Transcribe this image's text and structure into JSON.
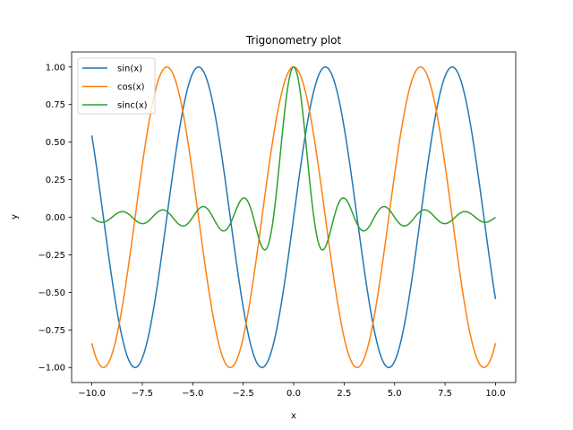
{
  "chart_data": {
    "type": "line",
    "title": "Trigonometry plot",
    "xlabel": "x",
    "ylabel": "y",
    "xlim": [
      -11,
      11
    ],
    "ylim": [
      -1.1,
      1.1
    ],
    "xticks": [
      -10,
      -7.5,
      -5,
      -2.5,
      0,
      2.5,
      5,
      7.5,
      10
    ],
    "xtick_labels": [
      "−10.0",
      "−7.5",
      "−5.0",
      "−2.5",
      "0.0",
      "2.5",
      "5.0",
      "7.5",
      "10.0"
    ],
    "yticks": [
      -1.0,
      -0.75,
      -0.5,
      -0.25,
      0.0,
      0.25,
      0.5,
      0.75,
      1.0
    ],
    "ytick_labels": [
      "−1.00",
      "−0.75",
      "−0.50",
      "−0.25",
      "0.00",
      "0.25",
      "0.50",
      "0.75",
      "1.00"
    ],
    "grid": false,
    "legend_position": "top-left",
    "x_range": [
      -10,
      10
    ],
    "series": [
      {
        "name": "sin(x)",
        "function": "sin",
        "color": "#1f77b4"
      },
      {
        "name": "cos(x)",
        "function": "cos",
        "color": "#ff7f0e"
      },
      {
        "name": "sinc(x)",
        "function": "sinc",
        "color": "#2ca02c"
      }
    ]
  }
}
